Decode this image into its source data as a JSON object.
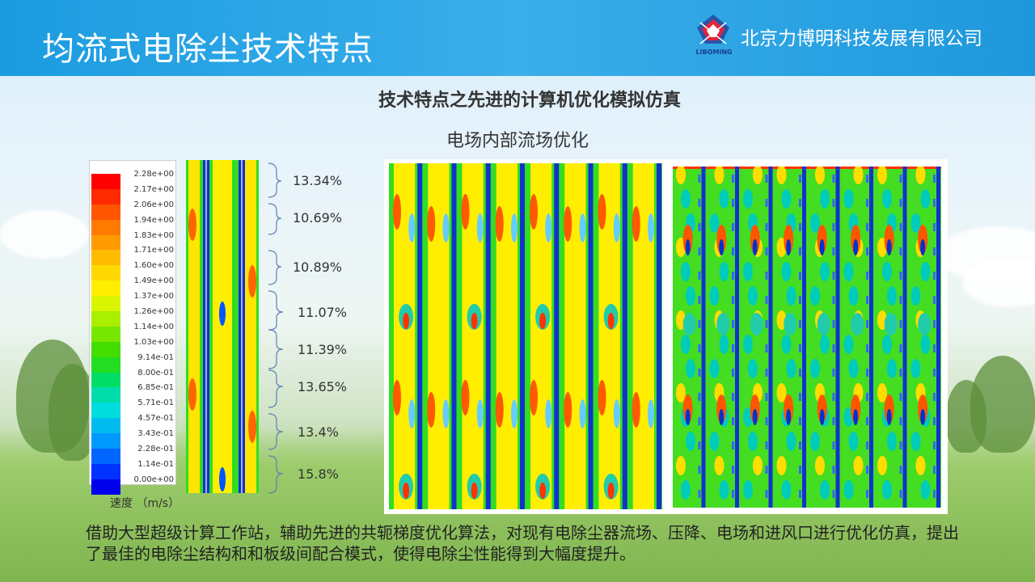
{
  "header": {
    "title": "均流式电除尘技术特点",
    "logo_text": "LIBOMING",
    "company": "北京力博明科技发展有限公司"
  },
  "section_heading": "技术特点之先进的计算机优化模拟仿真",
  "sub_heading": "电场内部流场优化",
  "legend": {
    "labels": [
      "2.28e+00",
      "2.17e+00",
      "2.06e+00",
      "1.94e+00",
      "1.83e+00",
      "1.71e+00",
      "1.60e+00",
      "1.49e+00",
      "1.37e+00",
      "1.26e+00",
      "1.14e+00",
      "1.03e+00",
      "9.14e-01",
      "8.00e-01",
      "6.85e-01",
      "5.71e-01",
      "4.57e-01",
      "3.43e-01",
      "2.28e-01",
      "1.14e-01",
      "0.00e+00"
    ],
    "colors": [
      "#ff0000",
      "#ff2a00",
      "#ff5500",
      "#ff7a00",
      "#ff9a00",
      "#ffbb00",
      "#ffd800",
      "#ffee00",
      "#d9f500",
      "#aaee00",
      "#77e600",
      "#44dd00",
      "#22dd22",
      "#00dd66",
      "#00ddaa",
      "#00dddd",
      "#00bbee",
      "#0099ff",
      "#0066ff",
      "#0033ff",
      "#0000ee"
    ],
    "unit": "速度 （m/s）"
  },
  "percentages": [
    "13.34%",
    "10.69%",
    "10.89%",
    "11.07%",
    "11.39%",
    "13.65%",
    "13.4%",
    "15.8%"
  ],
  "caption": "借助大型超级计算工作站，辅助先进的共轭梯度优化算法，对现有电除尘器流场、压降、电场和进风口进行优化仿真，提出了最佳的电除尘结构和和板级间配合模式，使得电除尘性能得到大幅度提升。"
}
